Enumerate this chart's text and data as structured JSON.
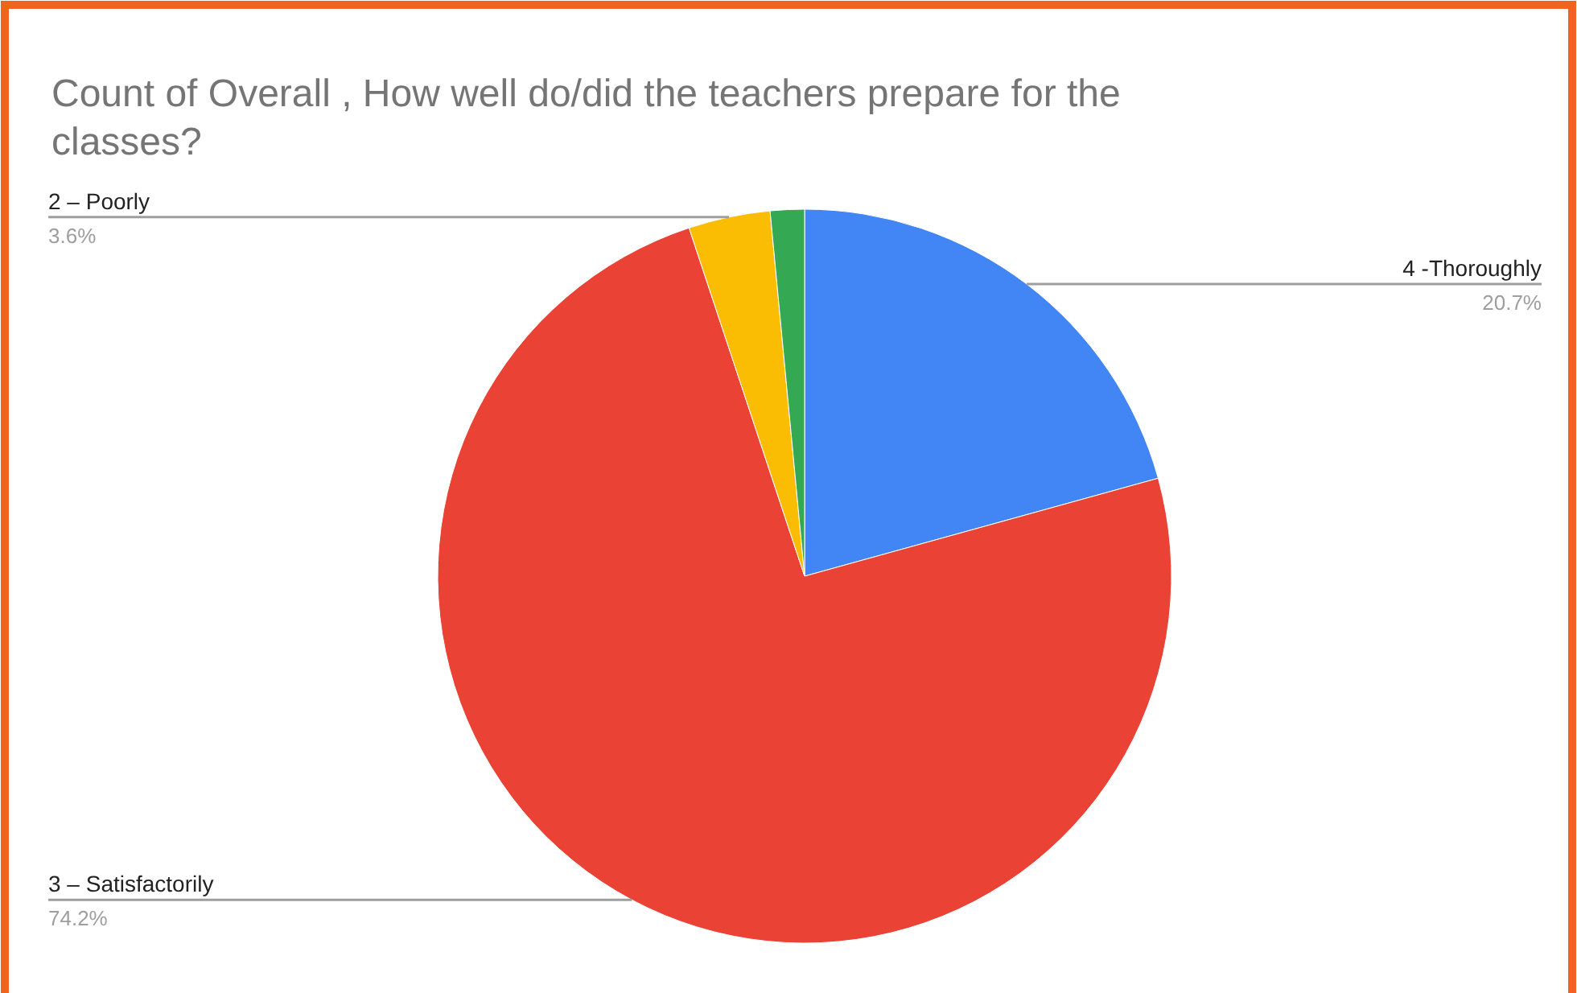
{
  "chart_data": {
    "type": "pie",
    "title": "Count of Overall , How well do/did the teachers prepare for the classes?",
    "categories": [
      "4 -Thoroughly",
      "3 – Satisfactorily",
      "2 – Poorly",
      null
    ],
    "values": [
      20.7,
      74.2,
      3.6,
      1.5
    ],
    "colors": [
      "#4285f4",
      "#ea4335",
      "#fbbc04",
      "#34a853"
    ],
    "value_labels": [
      "20.7%",
      "74.2%",
      "3.6%",
      null
    ]
  }
}
